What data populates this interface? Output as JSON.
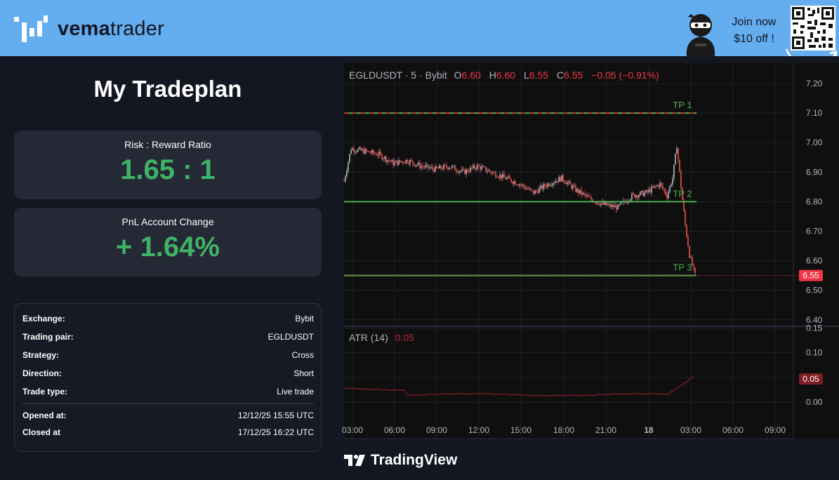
{
  "header": {
    "brand_bold": "vema",
    "brand_light": "trader",
    "promo_line1": "Join now",
    "promo_line2": "$10 off !"
  },
  "tradeplan": {
    "title": "My Tradeplan",
    "rr_label": "Risk : Reward Ratio",
    "rr_value": "1.65 : 1",
    "pnl_label": "PnL Account Change",
    "pnl_value": "+ 1.64%",
    "details": [
      {
        "key": "Exchange:",
        "value": "Bybit"
      },
      {
        "key": "Trading pair:",
        "value": "EGLDUSDT"
      },
      {
        "key": "Strategy:",
        "value": "Cross"
      },
      {
        "key": "Direction:",
        "value": "Short"
      },
      {
        "key": "Trade type:",
        "value": "Live trade"
      },
      {
        "key": "Opened at:",
        "value": "12/12/25 15:55 UTC"
      },
      {
        "key": "Closed at",
        "value": "17/12/25 16:22 UTC"
      }
    ]
  },
  "chart": {
    "legend": {
      "symbol": "EGLDUSDT · 5 · Bybit",
      "o_label": "O",
      "o": "6.60",
      "h_label": "H",
      "h": "6.60",
      "l_label": "L",
      "l": "6.55",
      "c_label": "C",
      "c": "6.55",
      "change": "−0.05 (−0.91%)"
    },
    "price_axis": [
      "7.20",
      "7.10",
      "7.00",
      "6.90",
      "6.80",
      "6.70",
      "6.60",
      "6.50",
      "6.40"
    ],
    "last_price": "6.55",
    "tp_lines": [
      {
        "label": "TP 1",
        "price": 7.1
      },
      {
        "label": "TP 2",
        "price": 6.8
      },
      {
        "label": "TP 3",
        "price": 6.55
      }
    ],
    "atr": {
      "label": "ATR (14)",
      "value": "0.05",
      "axis": [
        "0.15",
        "0.10",
        "0.05",
        "0.00"
      ]
    },
    "time_axis": [
      "03:00",
      "06:00",
      "09:00",
      "12:00",
      "15:00",
      "18:00",
      "21:00",
      "18",
      "03:00",
      "06:00",
      "09:00"
    ],
    "watermark": "TradingView"
  },
  "colors": {
    "header_bg": "#64adee",
    "positive": "#3fb365",
    "down": "#f23645",
    "tp_line": "#4caf50"
  }
}
